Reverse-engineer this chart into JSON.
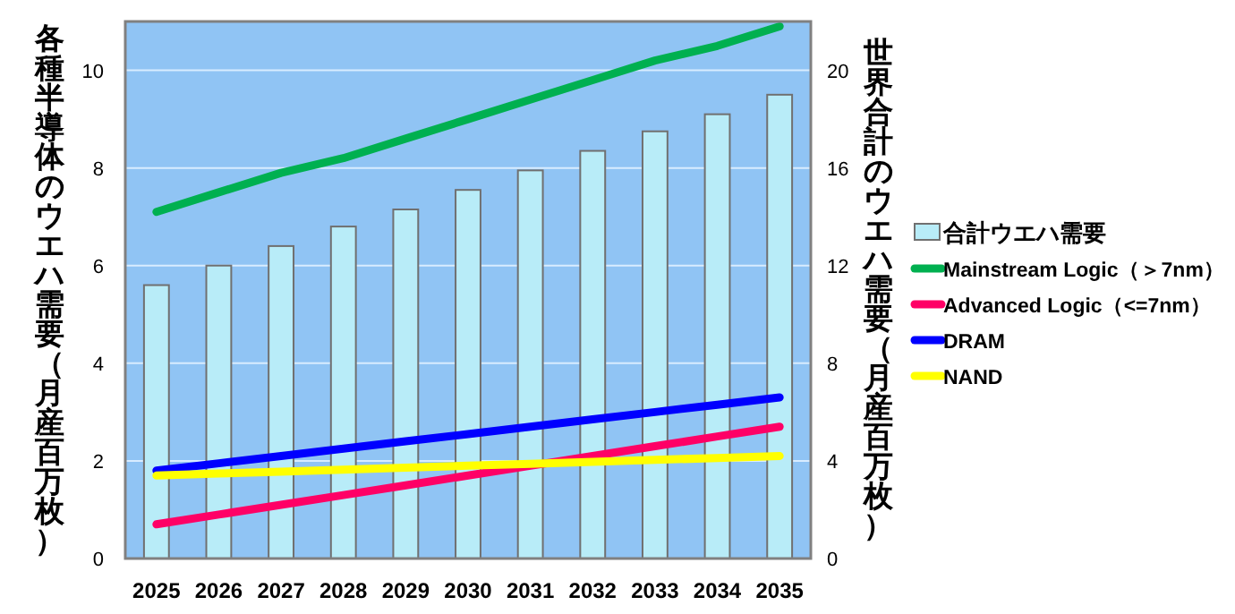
{
  "chart_data": {
    "type": "bar",
    "categories": [
      "2025",
      "2026",
      "2027",
      "2028",
      "2029",
      "2030",
      "2031",
      "2032",
      "2033",
      "2034",
      "2035"
    ],
    "series": [
      {
        "name": "合計ウエハ需要",
        "axis": "y2",
        "color": "#b8ecf8",
        "values": [
          11.2,
          12.0,
          12.8,
          13.6,
          14.3,
          15.1,
          15.9,
          16.7,
          17.5,
          18.2,
          19.0
        ]
      },
      {
        "name": "Mainstream Logic（＞7nm）",
        "type": "line",
        "color": "#00b050",
        "values": [
          7.1,
          7.5,
          7.9,
          8.2,
          8.6,
          9.0,
          9.4,
          9.8,
          10.2,
          10.5,
          10.9
        ]
      },
      {
        "name": "Advanced Logic（<=7nm）",
        "type": "line",
        "color": "#ff0066",
        "values": [
          0.7,
          0.9,
          1.1,
          1.3,
          1.5,
          1.7,
          1.9,
          2.1,
          2.3,
          2.5,
          2.7
        ]
      },
      {
        "name": "DRAM",
        "type": "line",
        "color": "#0000ff",
        "values": [
          1.8,
          1.95,
          2.1,
          2.25,
          2.4,
          2.55,
          2.7,
          2.85,
          3.0,
          3.15,
          3.3
        ]
      },
      {
        "name": "NAND",
        "type": "line",
        "color": "#ffff00",
        "values": [
          1.7,
          1.74,
          1.78,
          1.82,
          1.86,
          1.9,
          1.94,
          1.98,
          2.02,
          2.06,
          2.1
        ]
      }
    ],
    "ylabel": "各種半導体のウエハ需要（月産百万枚）",
    "y2label": "世界合計のウエハ需要（月産百万枚）",
    "ylim": [
      0,
      11
    ],
    "yticks": [
      0,
      2,
      4,
      6,
      8,
      10
    ],
    "y2lim": [
      0,
      22
    ],
    "y2ticks": [
      0,
      4,
      8,
      12,
      16,
      20
    ],
    "grid": "y",
    "legend": "right"
  }
}
